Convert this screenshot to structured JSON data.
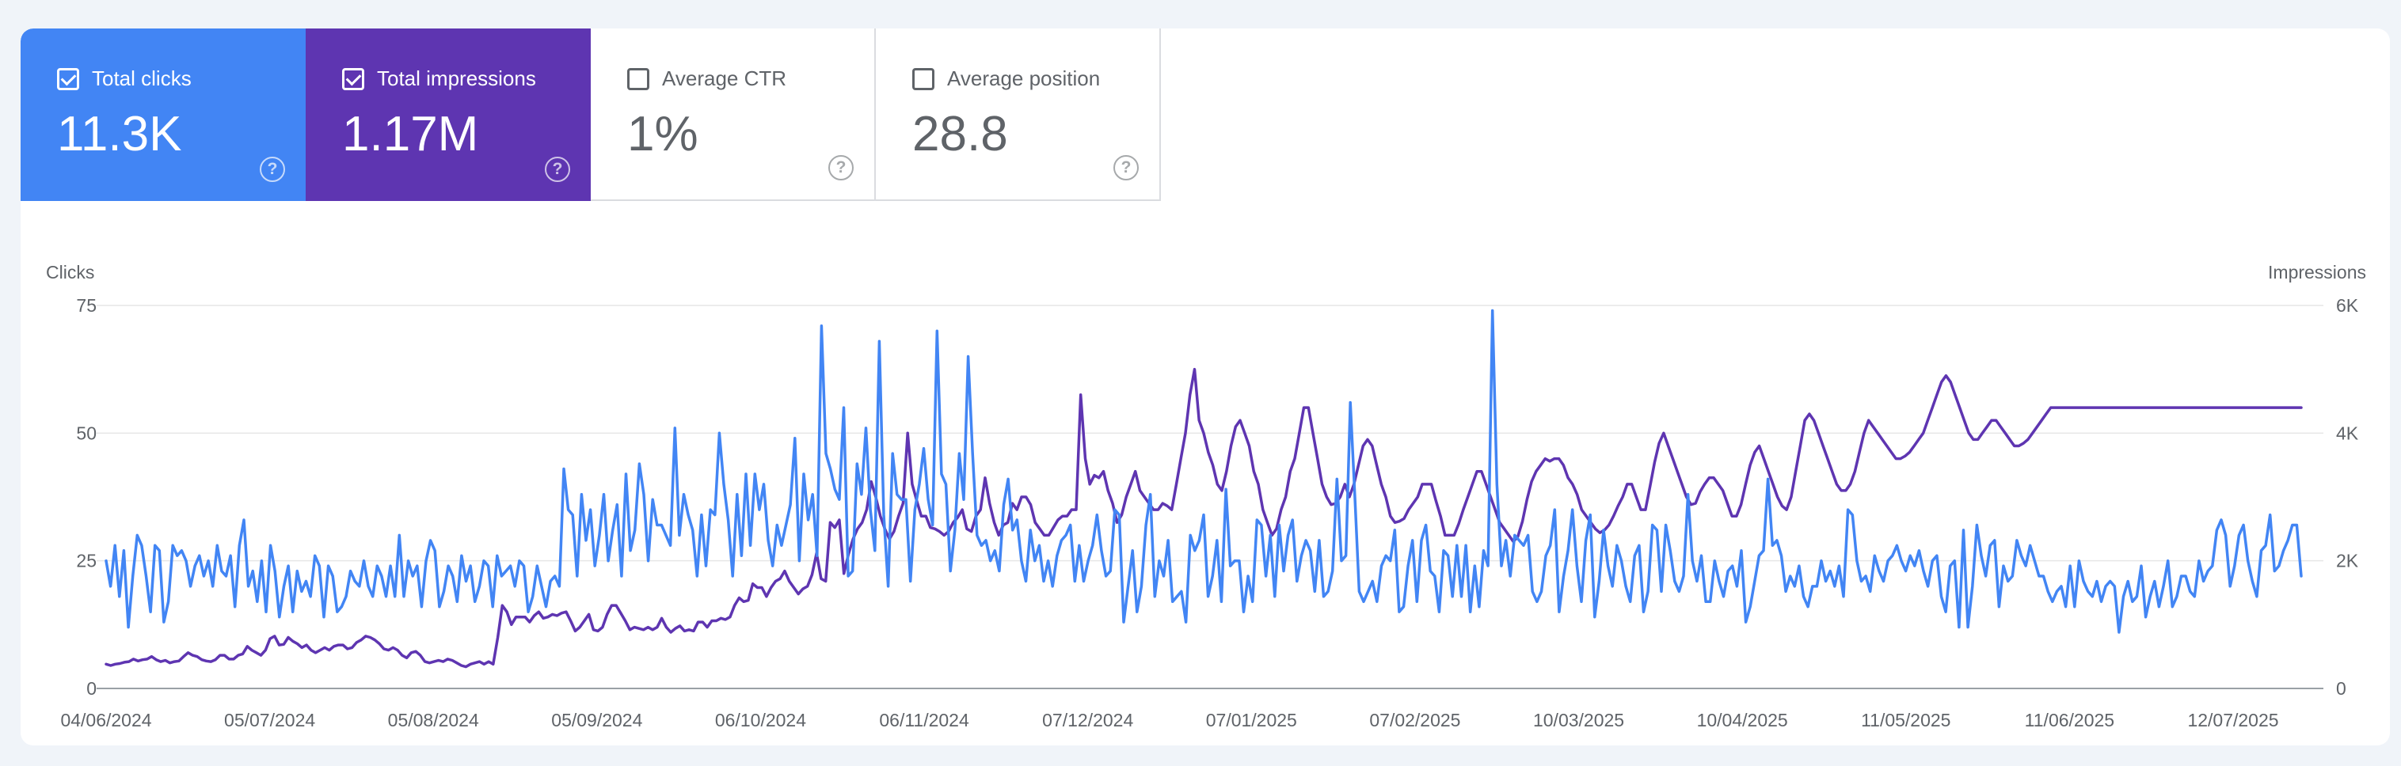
{
  "metrics": [
    {
      "key": "clicks",
      "label": "Total clicks",
      "value": "11.3K",
      "checked": true,
      "color": "#4285f4"
    },
    {
      "key": "impr",
      "label": "Total impressions",
      "value": "1.17M",
      "checked": true,
      "color": "#5e35b1"
    },
    {
      "key": "ctr",
      "label": "Average CTR",
      "value": "1%",
      "checked": false
    },
    {
      "key": "pos",
      "label": "Average position",
      "value": "28.8",
      "checked": false
    }
  ],
  "chart_data": {
    "type": "line",
    "left_axis_title": "Clicks",
    "right_axis_title": "Impressions",
    "left_ticks": [
      "0",
      "25",
      "50",
      "75"
    ],
    "right_ticks": [
      "0",
      "2K",
      "4K",
      "6K"
    ],
    "left_range": [
      0,
      75
    ],
    "right_range": [
      0,
      6000
    ],
    "x_labels": [
      "04/06/2024",
      "05/07/2024",
      "05/08/2024",
      "05/09/2024",
      "06/10/2024",
      "06/11/2024",
      "07/12/2024",
      "07/01/2025",
      "07/02/2025",
      "10/03/2025",
      "10/04/2025",
      "11/05/2025",
      "11/06/2025",
      "12/07/2025"
    ],
    "grid": true,
    "series": [
      {
        "name": "Clicks",
        "axis": "left",
        "color": "#4285f4",
        "values": [
          25,
          20,
          28,
          18,
          27,
          12,
          22,
          30,
          28,
          22,
          15,
          28,
          27,
          13,
          17,
          28,
          26,
          27,
          25,
          20,
          24,
          26,
          22,
          25,
          20,
          28,
          23,
          22,
          26,
          16,
          28,
          33,
          20,
          23,
          17,
          25,
          15,
          28,
          23,
          14,
          20,
          24,
          15,
          23,
          19,
          21,
          18,
          26,
          24,
          14,
          24,
          22,
          15,
          16,
          18,
          23,
          21,
          20,
          25,
          20,
          18,
          24,
          22,
          18,
          24,
          18,
          30,
          18,
          25,
          22,
          24,
          16,
          25,
          29,
          27,
          16,
          19,
          24,
          22,
          17,
          26,
          21,
          24,
          17,
          20,
          25,
          24,
          16,
          26,
          22,
          23,
          24,
          20,
          25,
          24,
          15,
          18,
          24,
          20,
          16,
          21,
          22,
          20,
          43,
          35,
          34,
          22,
          38,
          29,
          35,
          24,
          30,
          38,
          25,
          31,
          36,
          22,
          42,
          27,
          31,
          44,
          38,
          25,
          37,
          32,
          32,
          30,
          28,
          51,
          30,
          38,
          34,
          31,
          22,
          34,
          24,
          35,
          34,
          50,
          40,
          33,
          22,
          38,
          26,
          42,
          28,
          42,
          35,
          40,
          29,
          24,
          32,
          28,
          32,
          36,
          49,
          25,
          42,
          33,
          38,
          26,
          71,
          46,
          43,
          39,
          37,
          55,
          22,
          23,
          44,
          38,
          51,
          35,
          27,
          68,
          34,
          20,
          46,
          38,
          37,
          37,
          21,
          35,
          40,
          47,
          37,
          32,
          70,
          42,
          40,
          23,
          31,
          46,
          37,
          65,
          46,
          30,
          28,
          29,
          25,
          27,
          23,
          36,
          41,
          31,
          33,
          25,
          21,
          31,
          25,
          28,
          21,
          25,
          20,
          26,
          29,
          30,
          32,
          21,
          28,
          21,
          25,
          28,
          34,
          27,
          22,
          23,
          35,
          34,
          13,
          20,
          27,
          15,
          20,
          32,
          38,
          18,
          25,
          22,
          29,
          17,
          18,
          19,
          13,
          30,
          27,
          29,
          34,
          18,
          22,
          29,
          17,
          39,
          24,
          25,
          25,
          15,
          22,
          17,
          33,
          32,
          22,
          30,
          18,
          32,
          23,
          30,
          33,
          21,
          26,
          29,
          27,
          19,
          29,
          18,
          19,
          23,
          41,
          25,
          26,
          56,
          38,
          19,
          17,
          19,
          21,
          17,
          24,
          26,
          25,
          31,
          15,
          16,
          24,
          29,
          17,
          29,
          32,
          23,
          22,
          15,
          27,
          26,
          18,
          28,
          18,
          28,
          15,
          24,
          16,
          27,
          24,
          74,
          40,
          24,
          29,
          22,
          30,
          29,
          28,
          30,
          19,
          17,
          19,
          26,
          28,
          35,
          15,
          22,
          27,
          35,
          24,
          17,
          29,
          34,
          14,
          21,
          31,
          24,
          20,
          28,
          25,
          20,
          17,
          26,
          28,
          15,
          19,
          32,
          31,
          19,
          32,
          27,
          21,
          19,
          22,
          38,
          25,
          21,
          26,
          17,
          17,
          25,
          21,
          18,
          23,
          24,
          20,
          27,
          13,
          16,
          21,
          26,
          27,
          41,
          28,
          29,
          26,
          19,
          22,
          20,
          24,
          18,
          16,
          20,
          20,
          25,
          21,
          23,
          20,
          24,
          18,
          35,
          34,
          25,
          21,
          22,
          19,
          26,
          23,
          21,
          25,
          26,
          28,
          25,
          23,
          26,
          24,
          27,
          23,
          20,
          25,
          26,
          18,
          15,
          24,
          25,
          12,
          31,
          12,
          20,
          32,
          26,
          22,
          28,
          29,
          16,
          24,
          21,
          22,
          29,
          26,
          24,
          28,
          25,
          22,
          22,
          19,
          17,
          19,
          20,
          16,
          24,
          16,
          25,
          21,
          19,
          18,
          21,
          17,
          20,
          21,
          20,
          11,
          18,
          21,
          17,
          18,
          24,
          14,
          18,
          21,
          16,
          20,
          25,
          16,
          18,
          22,
          22,
          19,
          18,
          25,
          21,
          23,
          24,
          31,
          33,
          30,
          20,
          24,
          30,
          32,
          25,
          21,
          18,
          27,
          28,
          34,
          23,
          24,
          27,
          29,
          32,
          32,
          22
        ]
      },
      {
        "name": "Impressions",
        "axis": "right",
        "color": "#5e35b1",
        "values": [
          380,
          360,
          380,
          390,
          410,
          420,
          460,
          430,
          450,
          460,
          500,
          450,
          420,
          440,
          400,
          420,
          430,
          500,
          560,
          520,
          500,
          450,
          430,
          420,
          450,
          520,
          520,
          460,
          460,
          520,
          540,
          660,
          600,
          560,
          520,
          600,
          780,
          820,
          680,
          690,
          800,
          740,
          700,
          640,
          680,
          600,
          560,
          600,
          640,
          600,
          660,
          680,
          680,
          620,
          640,
          720,
          760,
          820,
          800,
          760,
          700,
          620,
          600,
          640,
          600,
          520,
          480,
          560,
          580,
          520,
          420,
          400,
          420,
          440,
          420,
          460,
          440,
          400,
          360,
          340,
          380,
          400,
          420,
          380,
          420,
          380,
          800,
          1300,
          1200,
          1000,
          1120,
          1120,
          1120,
          1040,
          1140,
          1200,
          1100,
          1120,
          1160,
          1140,
          1180,
          1200,
          1060,
          900,
          960,
          1060,
          1160,
          920,
          900,
          960,
          1160,
          1300,
          1300,
          1180,
          1060,
          920,
          960,
          940,
          920,
          960,
          920,
          960,
          1100,
          960,
          880,
          940,
          980,
          900,
          920,
          900,
          1040,
          1040,
          960,
          1060,
          1060,
          1100,
          1080,
          1120,
          1300,
          1420,
          1360,
          1380,
          1640,
          1580,
          1580,
          1440,
          1580,
          1680,
          1720,
          1840,
          1680,
          1580,
          1480,
          1560,
          1600,
          1780,
          2120,
          1720,
          1680,
          2600,
          2520,
          2640,
          1800,
          2100,
          2340,
          2500,
          2600,
          2800,
          3240,
          3000,
          2700,
          2500,
          2340,
          2460,
          2700,
          2900,
          4000,
          3200,
          2940,
          2700,
          2700,
          2520,
          2500,
          2460,
          2400,
          2460,
          2600,
          2680,
          2800,
          2500,
          2460,
          2700,
          2800,
          3300,
          2900,
          2600,
          2400,
          2560,
          2600,
          2900,
          2800,
          3000,
          3000,
          2880,
          2600,
          2500,
          2400,
          2400,
          2520,
          2640,
          2700,
          2700,
          2800,
          2800,
          4600,
          3600,
          3200,
          3340,
          3300,
          3400,
          3100,
          2900,
          2600,
          2720,
          3000,
          3200,
          3400,
          3100,
          3000,
          2900,
          2800,
          2800,
          2900,
          2860,
          2800,
          3200,
          3600,
          4000,
          4600,
          5000,
          4200,
          4000,
          3700,
          3500,
          3200,
          3100,
          3400,
          3800,
          4100,
          4200,
          4000,
          3800,
          3400,
          3200,
          2800,
          2600,
          2400,
          2500,
          2800,
          3000,
          3400,
          3600,
          4000,
          4400,
          4400,
          4000,
          3600,
          3200,
          3000,
          2880,
          2900,
          3000,
          3200,
          3000,
          3200,
          3500,
          3800,
          3900,
          3800,
          3500,
          3200,
          3000,
          2700,
          2600,
          2620,
          2660,
          2800,
          2900,
          3000,
          3200,
          3200,
          3200,
          2940,
          2700,
          2400,
          2400,
          2400,
          2580,
          2800,
          3000,
          3200,
          3400,
          3400,
          3200,
          3000,
          2800,
          2600,
          2500,
          2400,
          2300,
          2380,
          2620,
          2960,
          3240,
          3400,
          3500,
          3600,
          3560,
          3600,
          3600,
          3500,
          3300,
          3200,
          3040,
          2800,
          2700,
          2600,
          2500,
          2440,
          2480,
          2560,
          2700,
          2860,
          3000,
          3200,
          3200,
          3000,
          2800,
          2800,
          3160,
          3540,
          3840,
          4000,
          3800,
          3600,
          3400,
          3200,
          3000,
          2880,
          2900,
          3080,
          3200,
          3300,
          3300,
          3200,
          3100,
          2900,
          2700,
          2700,
          2880,
          3200,
          3500,
          3700,
          3800,
          3600,
          3400,
          3200,
          3000,
          2860,
          2800,
          3000,
          3400,
          3800,
          4200,
          4300,
          4200,
          4000,
          3800,
          3600,
          3400,
          3200,
          3100,
          3100,
          3200,
          3400,
          3700,
          4000,
          4200,
          4100,
          4000,
          3900,
          3800,
          3700,
          3600,
          3600,
          3640,
          3700,
          3800,
          3900,
          4000,
          4200,
          4400,
          4600,
          4800,
          4900,
          4800,
          4600,
          4400,
          4200,
          4000,
          3900,
          3900,
          4000,
          4100,
          4200,
          4200,
          4100,
          4000,
          3900,
          3800,
          3800,
          3840,
          3900,
          4000,
          4100,
          4200,
          4300,
          4400,
          4400,
          4400,
          4400,
          4400,
          4400,
          4400,
          4400,
          4400,
          4400,
          4400,
          4400,
          4400,
          4400,
          4400,
          4400,
          4400,
          4400,
          4400,
          4400,
          4400,
          4400,
          4400,
          4400,
          4400,
          4400,
          4400,
          4400,
          4400,
          4400,
          4400,
          4400,
          4400,
          4400,
          4400,
          4400,
          4400,
          4400,
          4400,
          4400,
          4400,
          4400,
          4400,
          4400,
          4400,
          4400,
          4400,
          4400,
          4400,
          4400,
          4400,
          4400,
          4400,
          4400,
          4400,
          4400
        ]
      }
    ]
  }
}
